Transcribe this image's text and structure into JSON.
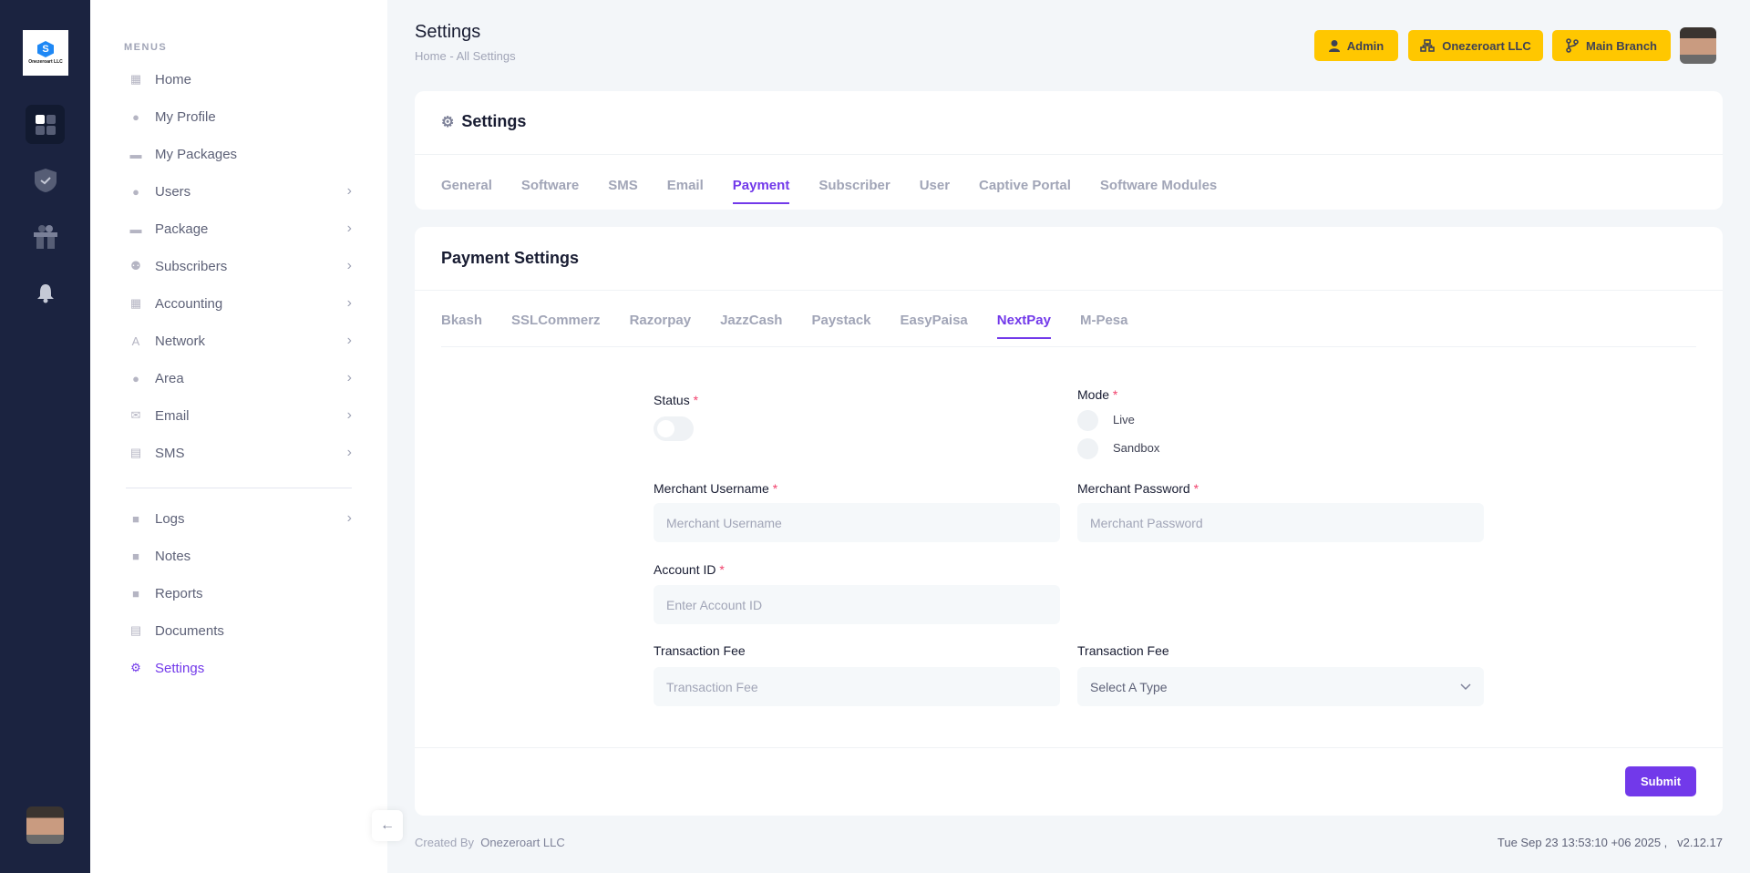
{
  "brand": {
    "logo_text": "Onezeroart LLC"
  },
  "rail": {
    "icons": [
      "apps-icon",
      "shield-check-icon",
      "gift-icon",
      "bell-icon"
    ]
  },
  "sidebar": {
    "heading": "MENUS",
    "items": [
      {
        "label": "Home",
        "icon": "home-grid-icon",
        "chevron": false
      },
      {
        "label": "My Profile",
        "icon": "user-icon",
        "chevron": false
      },
      {
        "label": "My Packages",
        "icon": "package-icon",
        "chevron": false
      },
      {
        "label": "Users",
        "icon": "user-icon",
        "chevron": true
      },
      {
        "label": "Package",
        "icon": "package-icon",
        "chevron": true
      },
      {
        "label": "Subscribers",
        "icon": "users-icon",
        "chevron": true
      },
      {
        "label": "Accounting",
        "icon": "calculator-icon",
        "chevron": true
      },
      {
        "label": "Network",
        "icon": "antenna-icon",
        "chevron": true
      },
      {
        "label": "Area",
        "icon": "location-icon",
        "chevron": true
      },
      {
        "label": "Email",
        "icon": "envelope-icon",
        "chevron": true
      },
      {
        "label": "SMS",
        "icon": "message-icon",
        "chevron": true
      }
    ],
    "items2": [
      {
        "label": "Logs",
        "icon": "book-icon",
        "chevron": true
      },
      {
        "label": "Notes",
        "icon": "note-icon",
        "chevron": false
      },
      {
        "label": "Reports",
        "icon": "book-icon",
        "chevron": false
      },
      {
        "label": "Documents",
        "icon": "document-icon",
        "chevron": false
      },
      {
        "label": "Settings",
        "icon": "gears-icon",
        "chevron": false,
        "active": true
      }
    ]
  },
  "header": {
    "title": "Settings",
    "breadcrumb": [
      "Home",
      "-",
      "All Settings"
    ],
    "buttons": {
      "admin": "Admin",
      "company": "Onezeroart LLC",
      "branch": "Main Branch"
    },
    "accent": "#ffc700"
  },
  "settings_card": {
    "title": "Settings",
    "tabs": [
      "General",
      "Software",
      "SMS",
      "Email",
      "Payment",
      "Subscriber",
      "User",
      "Captive Portal",
      "Software Modules"
    ],
    "active_tab": "Payment"
  },
  "payment": {
    "title": "Payment Settings",
    "tabs": [
      "Bkash",
      "SSLCommerz",
      "Razorpay",
      "JazzCash",
      "Paystack",
      "EasyPaisa",
      "NextPay",
      "M-Pesa"
    ],
    "active_tab": "NextPay",
    "status_label": "Status",
    "status_on": false,
    "mode_label": "Mode",
    "mode_options": [
      "Live",
      "Sandbox"
    ],
    "merchant_username_label": "Merchant Username",
    "merchant_username_placeholder": "Merchant Username",
    "merchant_password_label": "Merchant Password",
    "merchant_password_placeholder": "Merchant Password",
    "account_id_label": "Account ID",
    "account_id_placeholder": "Enter Account ID",
    "fee_label": "Transaction Fee",
    "fee_placeholder": "Transaction Fee",
    "fee_type_label": "Transaction Fee",
    "fee_type_value": "Select A Type",
    "required_mark": "*",
    "submit": "Submit",
    "accent": "#7239ea"
  },
  "footer": {
    "created_by": "Created By",
    "company": "Onezeroart LLC",
    "datetime": "Tue Sep 23 13:53:10 +06 2025 ,",
    "version": "v2.12.17"
  }
}
